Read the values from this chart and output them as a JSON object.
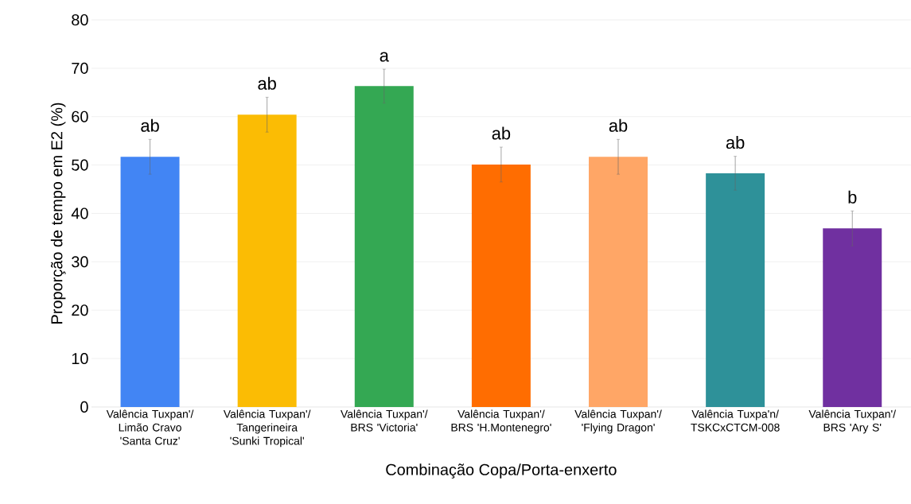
{
  "chart_data": {
    "type": "bar",
    "ylabel": "Proporção de tempo em E2 (%)",
    "xlabel": "Combinação Copa/Porta-enxerto",
    "categories": [
      "Valência Tuxpan'/ Limão Cravo 'Santa Cruz'",
      "Valência Tuxpan'/ Tangerineira 'Sunki Tropical'",
      "Valência Tuxpan'/ BRS 'Victoria'",
      "Valência Tuxpan'/ BRS 'H.Montenegro'",
      "Valência Tuxpan'/ 'Flying Dragon'",
      "Valência Tuxpa'n/ TSKCxCTCM-008",
      "Valência Tuxpan'/ BRS 'Ary S'"
    ],
    "values": [
      51.7,
      60.4,
      66.3,
      50.1,
      51.7,
      48.3,
      36.9
    ],
    "errors": [
      3.6,
      3.6,
      3.5,
      3.6,
      3.6,
      3.5,
      3.6
    ],
    "colors": [
      "#4285f4",
      "#fbbc04",
      "#34a853",
      "#ff6d01",
      "#ffa666",
      "#2e9199",
      "#7030a0"
    ],
    "ylim": [
      0,
      80
    ],
    "yticks": [
      0,
      10,
      20,
      30,
      40,
      50,
      60,
      70,
      80
    ],
    "grid": "y",
    "annotations": [
      "ab",
      "ab",
      "a",
      "ab",
      "ab",
      "ab",
      "b"
    ]
  }
}
